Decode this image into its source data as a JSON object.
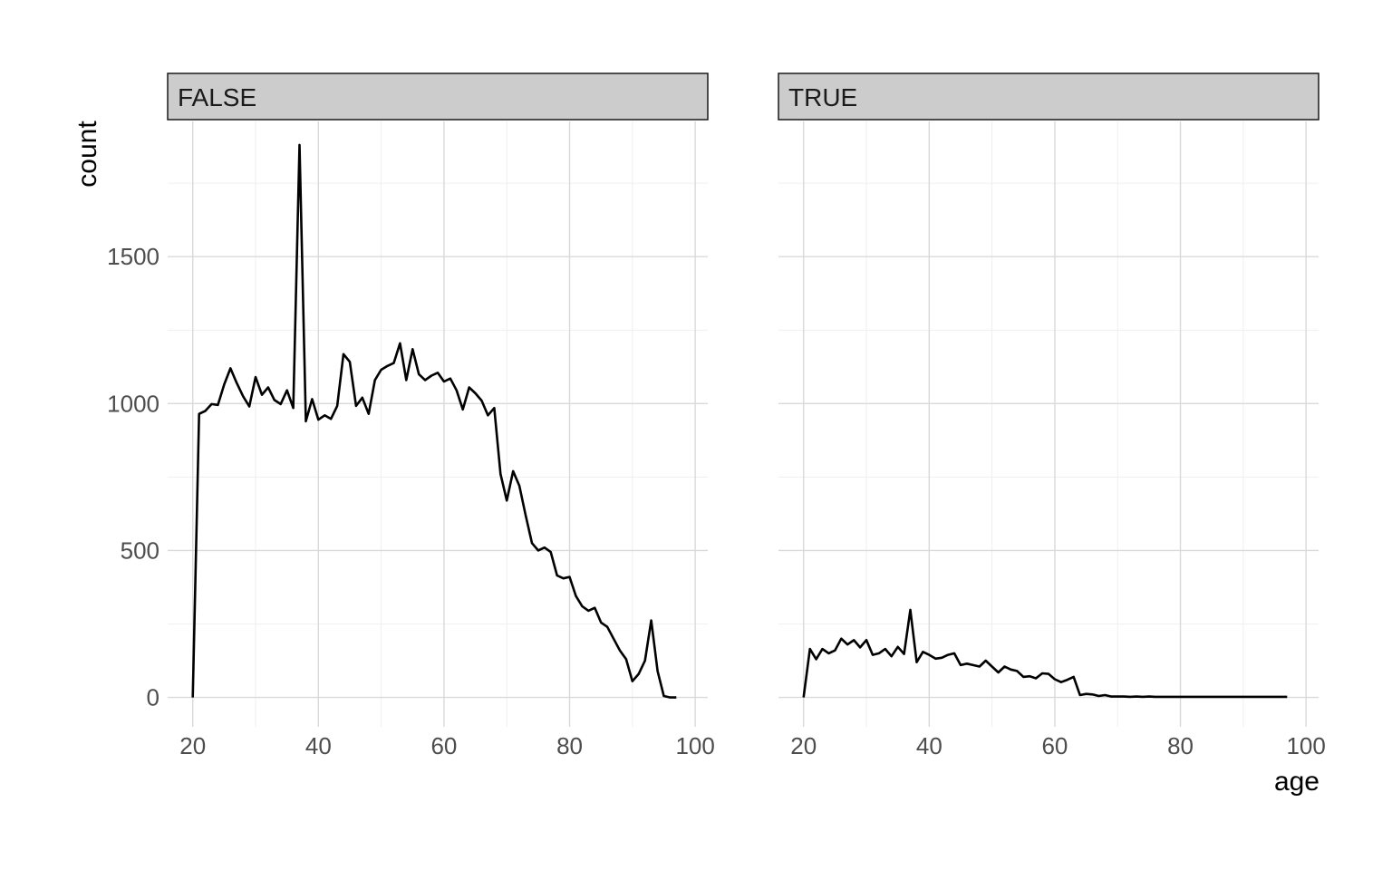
{
  "chart_data": {
    "type": "line",
    "xlabel": "age",
    "ylabel": "count",
    "xlim": [
      16,
      102
    ],
    "ylim": [
      -100,
      1960
    ],
    "x_ticks": [
      20,
      40,
      60,
      80,
      100
    ],
    "y_ticks": [
      0,
      500,
      1000,
      1500
    ],
    "x_tick_labels": [
      "20",
      "40",
      "60",
      "80",
      "100"
    ],
    "y_tick_labels": [
      "0",
      "500",
      "1000",
      "1500"
    ],
    "grid": true,
    "panels": [
      {
        "strip": "FALSE",
        "x": [
          20,
          21,
          22,
          23,
          24,
          25,
          26,
          27,
          28,
          29,
          30,
          31,
          32,
          33,
          34,
          35,
          36,
          37,
          38,
          39,
          40,
          41,
          42,
          43,
          44,
          45,
          46,
          47,
          48,
          49,
          50,
          51,
          52,
          53,
          54,
          55,
          56,
          57,
          58,
          59,
          60,
          61,
          62,
          63,
          64,
          65,
          66,
          67,
          68,
          69,
          70,
          71,
          72,
          73,
          74,
          75,
          76,
          77,
          78,
          79,
          80,
          81,
          82,
          83,
          84,
          85,
          86,
          87,
          88,
          89,
          90,
          91,
          92,
          93,
          94,
          95,
          96,
          97
        ],
        "y": [
          0,
          965,
          975,
          998,
          995,
          1065,
          1120,
          1070,
          1025,
          990,
          1090,
          1030,
          1055,
          1012,
          998,
          1045,
          985,
          1880,
          940,
          1015,
          945,
          960,
          948,
          992,
          1168,
          1142,
          992,
          1020,
          965,
          1080,
          1115,
          1128,
          1138,
          1205,
          1080,
          1185,
          1100,
          1080,
          1095,
          1105,
          1075,
          1085,
          1045,
          980,
          1055,
          1035,
          1010,
          960,
          985,
          760,
          670,
          770,
          720,
          620,
          525,
          500,
          510,
          495,
          415,
          405,
          410,
          345,
          310,
          295,
          305,
          255,
          240,
          200,
          160,
          130,
          55,
          80,
          125,
          262,
          90,
          5,
          0,
          0
        ]
      },
      {
        "strip": "TRUE",
        "x": [
          20,
          21,
          22,
          23,
          24,
          25,
          26,
          27,
          28,
          29,
          30,
          31,
          32,
          33,
          34,
          35,
          36,
          37,
          38,
          39,
          40,
          41,
          42,
          43,
          44,
          45,
          46,
          47,
          48,
          49,
          50,
          51,
          52,
          53,
          54,
          55,
          56,
          57,
          58,
          59,
          60,
          61,
          62,
          63,
          64,
          65,
          66,
          67,
          68,
          69,
          70,
          71,
          72,
          73,
          74,
          75,
          76,
          77,
          78,
          79,
          80,
          81,
          82,
          83,
          84,
          85,
          86,
          87,
          88,
          89,
          90,
          91,
          92,
          93,
          94,
          95,
          96,
          97
        ],
        "y": [
          0,
          165,
          130,
          165,
          150,
          160,
          200,
          180,
          195,
          170,
          195,
          145,
          150,
          165,
          140,
          172,
          148,
          298,
          120,
          155,
          145,
          132,
          135,
          145,
          150,
          110,
          115,
          110,
          105,
          125,
          105,
          85,
          105,
          95,
          90,
          70,
          72,
          65,
          82,
          80,
          62,
          52,
          60,
          70,
          8,
          12,
          10,
          5,
          8,
          3,
          3,
          3,
          2,
          3,
          2,
          3,
          2,
          2,
          2,
          2,
          2,
          2,
          2,
          2,
          2,
          2,
          2,
          2,
          2,
          2,
          2,
          2,
          2,
          2,
          2,
          2,
          2,
          2
        ]
      }
    ]
  },
  "colors": {
    "line": "#000000",
    "strip_fill": "#cccccc",
    "grid_major": "#d9d9d9",
    "grid_minor": "#ebebeb",
    "tick_text": "#4d4d4d"
  }
}
